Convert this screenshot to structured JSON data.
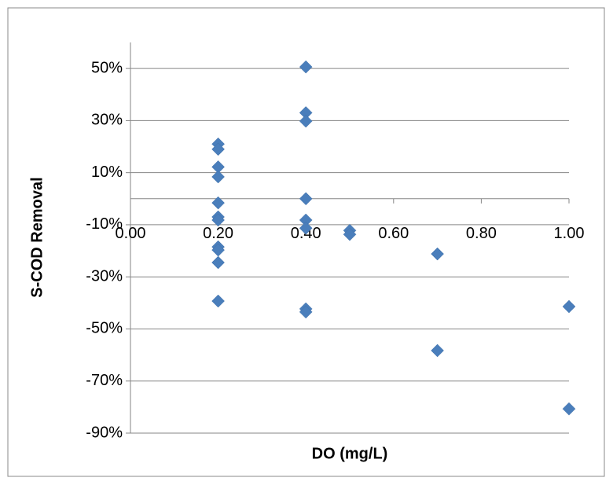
{
  "chart_data": {
    "type": "scatter",
    "x_label": "DO (mg/L)",
    "y_label": "S-COD Removal",
    "x": [
      0.2,
      0.2,
      0.2,
      0.2,
      0.2,
      0.2,
      0.2,
      0.2,
      0.2,
      0.2,
      0.2,
      0.4,
      0.4,
      0.4,
      0.4,
      0.4,
      0.4,
      0.4,
      0.4,
      0.5,
      0.5,
      0.7,
      0.7,
      1.0,
      1.0
    ],
    "values": [
      21,
      19,
      12.2,
      8.4,
      -1.6,
      -7,
      -8.2,
      -18.5,
      -19.7,
      -24.5,
      -39.3,
      50.6,
      33,
      29.8,
      0,
      -8.2,
      -11.3,
      -42.3,
      -43.5,
      -12.2,
      -13.7,
      -21.2,
      -58.3,
      -41.4,
      -80.7
    ],
    "color": "#4a7ebb",
    "xlim": [
      0,
      1
    ],
    "xticks": [
      {
        "value": 0,
        "label": "0.00"
      },
      {
        "value": 0.2,
        "label": "0.20"
      },
      {
        "value": 0.4,
        "label": "0.40"
      },
      {
        "value": 0.6,
        "label": "0.60"
      },
      {
        "value": 0.8,
        "label": "0.80"
      },
      {
        "value": 1,
        "label": "1.00"
      }
    ],
    "ylim": [
      -90,
      60
    ],
    "yticks": [
      {
        "value": 50,
        "label": "50%"
      },
      {
        "value": 30,
        "label": "30%"
      },
      {
        "value": 10,
        "label": "10%"
      },
      {
        "value": -10,
        "label": "-10%"
      },
      {
        "value": -30,
        "label": "-30%"
      },
      {
        "value": -50,
        "label": "-50%"
      },
      {
        "value": -70,
        "label": "-70%"
      },
      {
        "value": -90,
        "label": "-90%"
      }
    ],
    "grid": true
  }
}
